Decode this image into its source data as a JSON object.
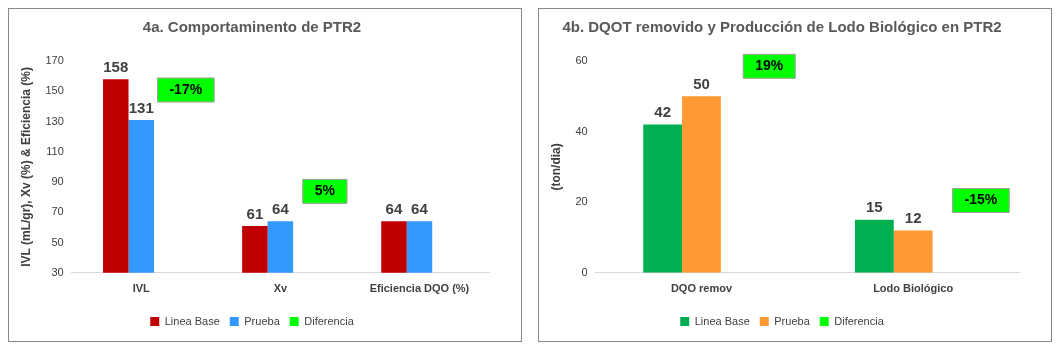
{
  "chart_data": [
    {
      "type": "bar",
      "title": "4a. Comportaminento de PTR2",
      "ylabel": "IVL (mL/gr), Xv (%) & Eficiencia (%)",
      "categories": [
        "IVL",
        "Xv",
        "Eficiencia DQO (%)"
      ],
      "series": [
        {
          "name": "Linea Base",
          "color": "#c00000",
          "values": [
            158,
            61,
            64
          ]
        },
        {
          "name": "Prueba",
          "color": "#3399ff",
          "values": [
            131,
            64,
            64
          ]
        },
        {
          "name": "Diferencia",
          "color": "#00ff00",
          "values": [
            null,
            null,
            null
          ]
        }
      ],
      "ylim": [
        30,
        170
      ],
      "yticks": [
        30,
        50,
        70,
        90,
        110,
        130,
        150,
        170
      ],
      "grid": false,
      "legend": "bottom",
      "data_labels": true,
      "annotations": [
        "-17%",
        "5%"
      ]
    },
    {
      "type": "bar",
      "title": "4b. DQOT removido y Producción de Lodo Biológico en PTR2",
      "ylabel": "(ton/dia)",
      "categories": [
        "DQO remov",
        "Lodo Biológico"
      ],
      "series": [
        {
          "name": "Linea Base",
          "color": "#00b050",
          "values": [
            42,
            15
          ]
        },
        {
          "name": "Prueba",
          "color": "#ff9933",
          "values": [
            50,
            12
          ]
        },
        {
          "name": "Diferencia",
          "color": "#00ff00",
          "values": [
            null,
            null
          ]
        }
      ],
      "ylim": [
        0,
        60
      ],
      "yticks": [
        0,
        20,
        40,
        60
      ],
      "grid": false,
      "legend": "bottom",
      "data_labels": true,
      "annotations": [
        "19%",
        "-15%"
      ]
    }
  ]
}
